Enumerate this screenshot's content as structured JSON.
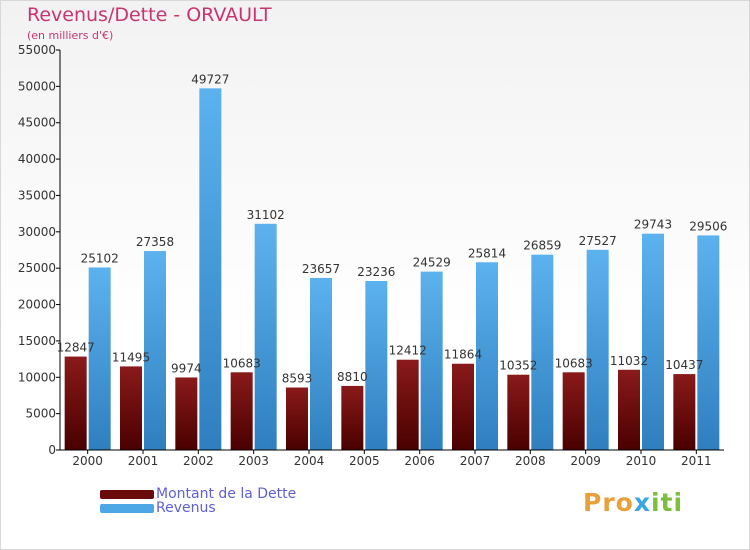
{
  "title": "Revenus/Dette - ORVAULT",
  "subtitle": "(en milliers d'€)",
  "logo": {
    "text": "Proxiti",
    "part1": "Pro",
    "part2": "x",
    "part3": "iti"
  },
  "colors": {
    "dette": "#6a0a0a",
    "revenus": "#4da6e6",
    "title": "#c8356f",
    "legend_text": "#5f5fd6"
  },
  "chart_data": {
    "type": "bar",
    "title": "Revenus/Dette - ORVAULT",
    "subtitle": "(en milliers d'€)",
    "categories": [
      "2000",
      "2001",
      "2002",
      "2003",
      "2004",
      "2005",
      "2006",
      "2007",
      "2008",
      "2009",
      "2010",
      "2011"
    ],
    "series": [
      {
        "name": "Montant de la Dette",
        "values": [
          12847,
          11495,
          9974,
          10683,
          8593,
          8810,
          12412,
          11864,
          10352,
          10683,
          11032,
          10437
        ],
        "labels": [
          "12847",
          "11495",
          "9974",
          "10683",
          "8593",
          "8810",
          "12412",
          "11864",
          "10352",
          "10683",
          "11032",
          "10437"
        ]
      },
      {
        "name": "Revenus",
        "values": [
          25102,
          27358,
          49727,
          31102,
          23657,
          23236,
          24529,
          25814,
          26859,
          27527,
          29743,
          29506
        ],
        "labels": [
          "25102",
          "27358",
          "49727",
          "31102",
          "23657",
          "23236",
          "24529",
          "25814",
          "26859",
          "27527",
          "29743",
          "29506"
        ]
      }
    ],
    "yticks": [
      "0",
      "5000",
      "10000",
      "15000",
      "20000",
      "25000",
      "30000",
      "35000",
      "40000",
      "45000",
      "50000",
      "55000"
    ],
    "ylim": [
      0,
      55000
    ],
    "grid": false,
    "legend": "bottom-left"
  }
}
